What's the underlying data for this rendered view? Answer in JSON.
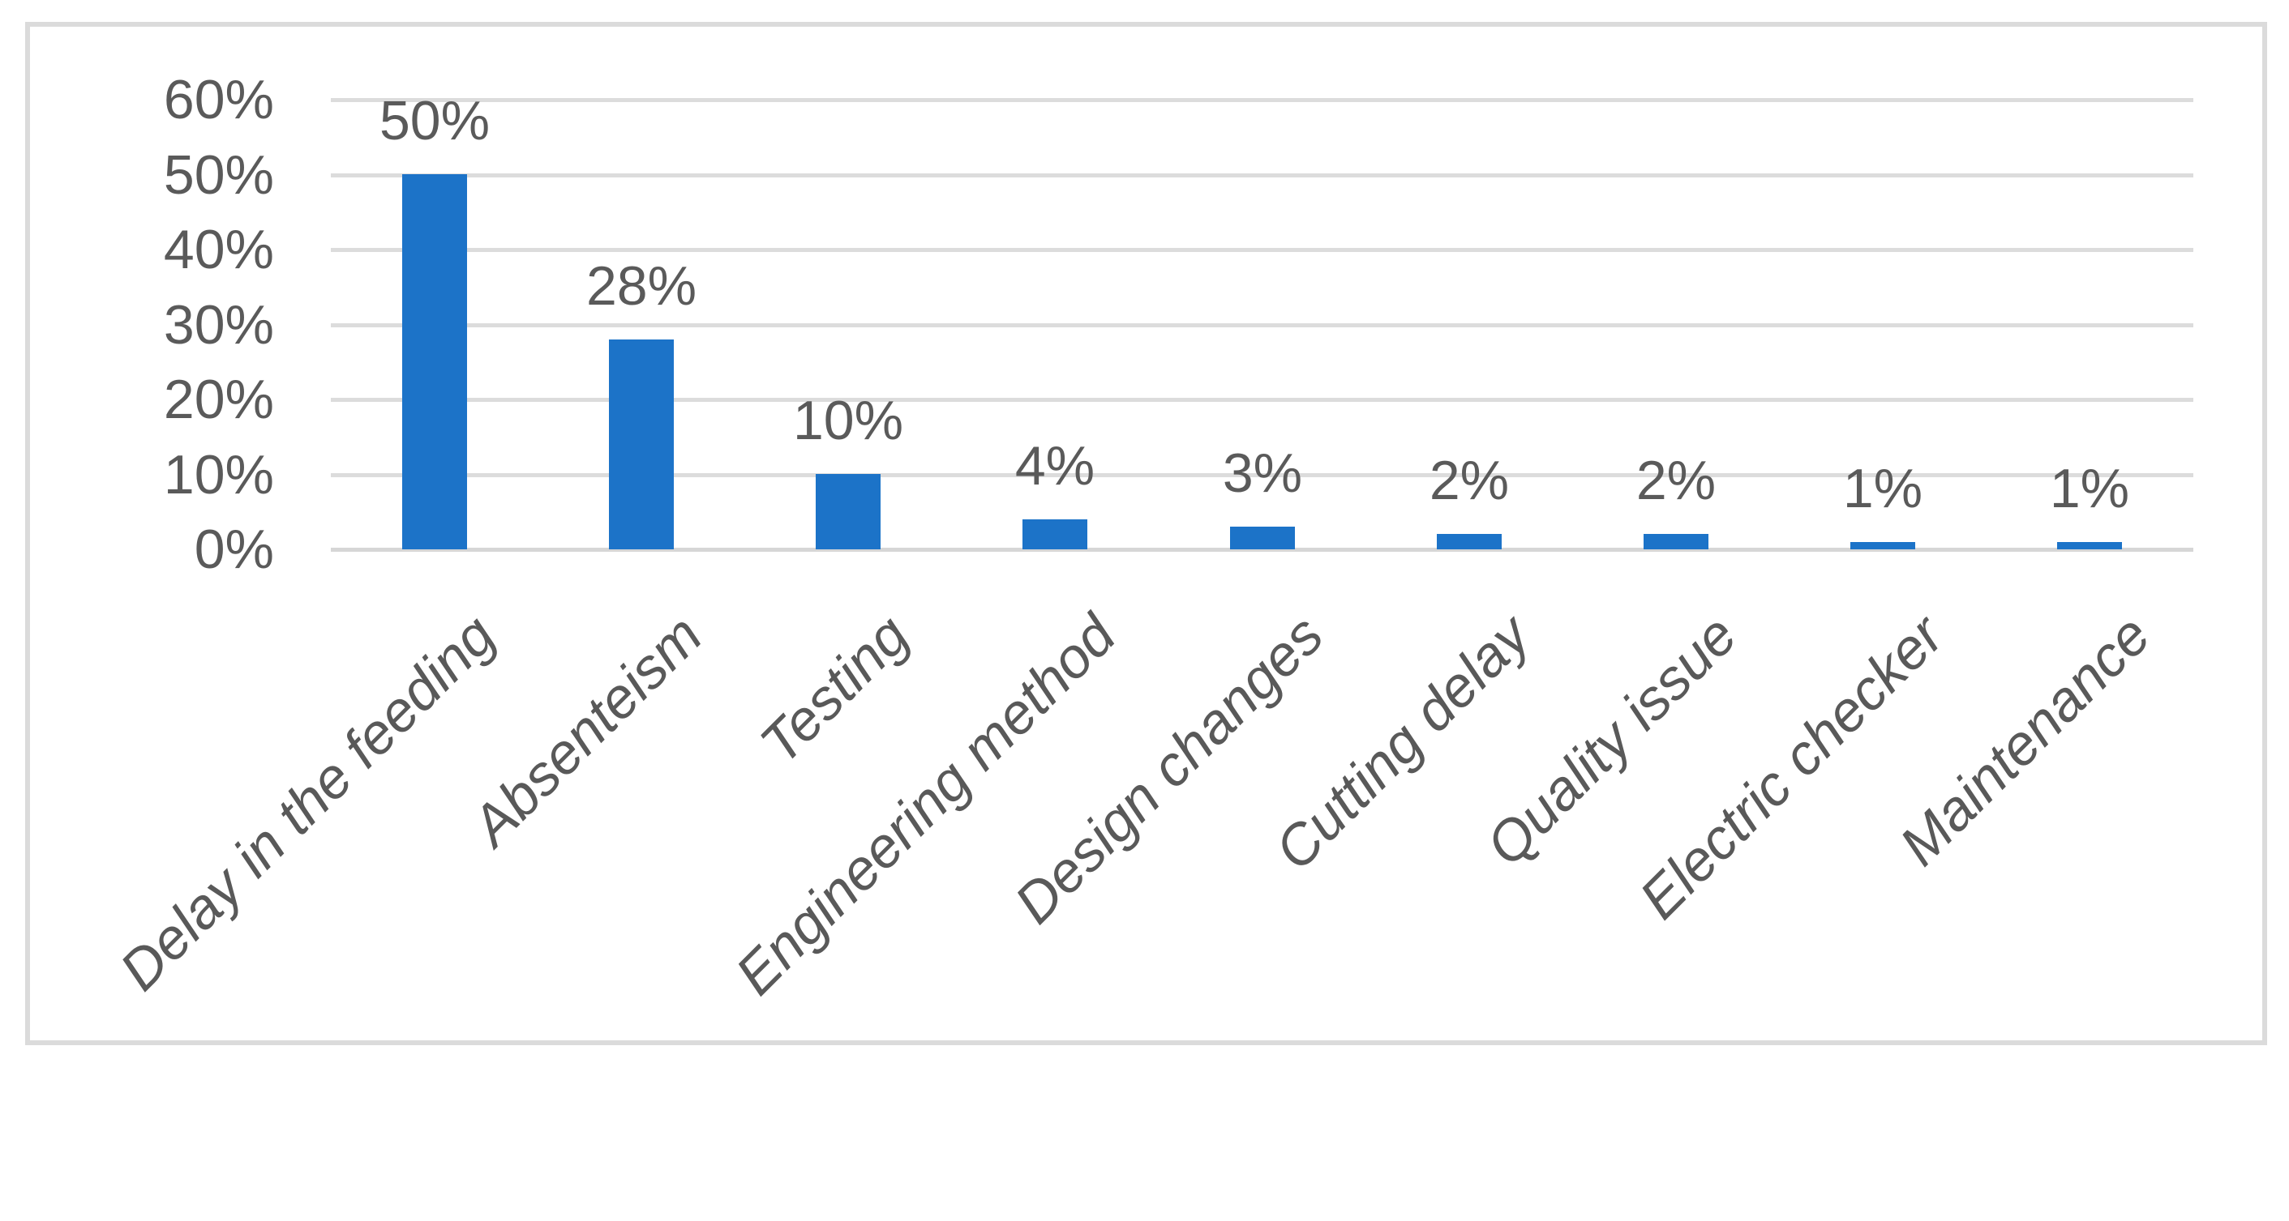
{
  "chart_data": {
    "type": "bar",
    "title": "",
    "xlabel": "",
    "ylabel": "",
    "categories": [
      "Delay in the feeding",
      "Absenteism",
      "Testing",
      "Engineering method",
      "Design changes",
      "Cutting delay",
      "Quality issue",
      "Electric checker",
      "Maintenance"
    ],
    "values": [
      50,
      28,
      10,
      4,
      3,
      2,
      2,
      1,
      1
    ],
    "value_labels": [
      "50%",
      "28%",
      "10%",
      "4%",
      "3%",
      "2%",
      "2%",
      "1%",
      "1%"
    ],
    "ylim": [
      0,
      60
    ],
    "ytick_step": 10,
    "ytick_values": [
      60,
      50,
      40,
      30,
      20,
      10,
      0
    ],
    "ytick_labels": [
      "60%",
      "50%",
      "40%",
      "30%",
      "20%",
      "10%",
      "0%"
    ],
    "grid": true,
    "legend": "none",
    "colors": {
      "bar": "#1C73C8",
      "gridline": "#DCDCDC",
      "axis_line": "#D6D6D6",
      "tick_text": "#5A5A5A",
      "value_text": "#5A5A5A",
      "category_text": "#595959",
      "frame_border": "#DBDBDB",
      "background": "#FFFFFF"
    }
  }
}
